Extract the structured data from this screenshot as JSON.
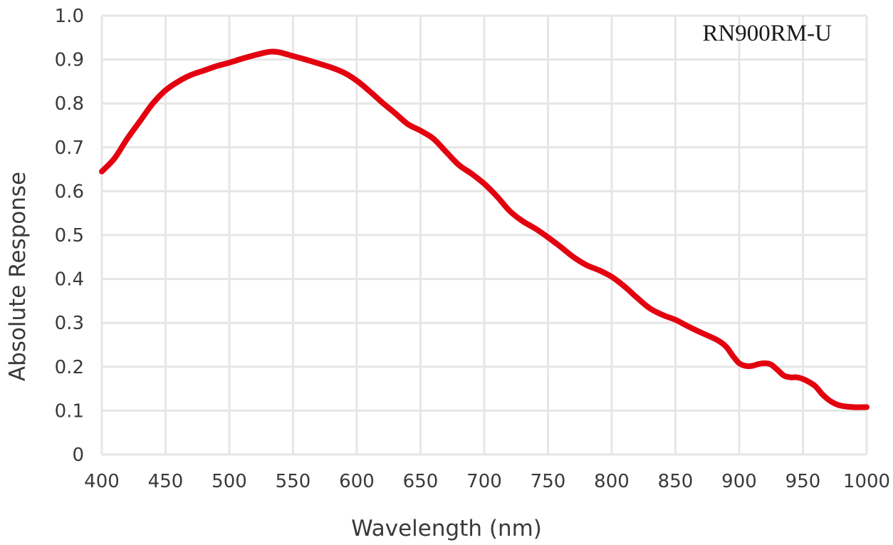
{
  "chart_data": {
    "type": "line",
    "title": "",
    "xlabel": "Wavelength (nm)",
    "ylabel": "Absolute Response",
    "annotation": "RN900RM-U",
    "xlim": [
      400,
      1000
    ],
    "ylim": [
      0,
      1.0
    ],
    "xticks": [
      400,
      450,
      500,
      550,
      600,
      650,
      700,
      750,
      800,
      850,
      900,
      950,
      1000
    ],
    "yticks": [
      0,
      0.1,
      0.2,
      0.3,
      0.4,
      0.5,
      0.6,
      0.7,
      0.8,
      0.9,
      1.0
    ],
    "xtick_labels": [
      "400",
      "450",
      "500",
      "550",
      "600",
      "650",
      "700",
      "750",
      "800",
      "850",
      "900",
      "950",
      "1000"
    ],
    "ytick_labels": [
      "0",
      "0.1",
      "0.2",
      "0.3",
      "0.4",
      "0.5",
      "0.6",
      "0.7",
      "0.8",
      "0.9",
      "1.0"
    ],
    "grid": true,
    "legend": "none",
    "series": [
      {
        "color": "#e3000f",
        "x": [
          400,
          410,
          420,
          430,
          440,
          450,
          460,
          470,
          480,
          490,
          500,
          510,
          520,
          530,
          535,
          540,
          550,
          560,
          570,
          580,
          590,
          600,
          610,
          620,
          630,
          640,
          650,
          660,
          670,
          680,
          690,
          700,
          710,
          720,
          730,
          740,
          750,
          760,
          770,
          780,
          790,
          800,
          810,
          820,
          830,
          840,
          850,
          860,
          870,
          880,
          885,
          890,
          895,
          900,
          905,
          910,
          915,
          920,
          925,
          930,
          935,
          940,
          945,
          950,
          955,
          960,
          965,
          970,
          975,
          980,
          990,
          1000
        ],
        "y": [
          0.645,
          0.675,
          0.72,
          0.76,
          0.8,
          0.83,
          0.85,
          0.865,
          0.875,
          0.885,
          0.893,
          0.902,
          0.91,
          0.917,
          0.918,
          0.916,
          0.908,
          0.9,
          0.891,
          0.882,
          0.87,
          0.852,
          0.828,
          0.802,
          0.778,
          0.753,
          0.738,
          0.72,
          0.69,
          0.66,
          0.64,
          0.617,
          0.588,
          0.555,
          0.532,
          0.515,
          0.495,
          0.473,
          0.45,
          0.432,
          0.42,
          0.405,
          0.383,
          0.357,
          0.333,
          0.318,
          0.307,
          0.292,
          0.278,
          0.265,
          0.257,
          0.245,
          0.225,
          0.208,
          0.202,
          0.202,
          0.206,
          0.208,
          0.205,
          0.193,
          0.18,
          0.176,
          0.176,
          0.172,
          0.165,
          0.155,
          0.138,
          0.125,
          0.116,
          0.111,
          0.108,
          0.108
        ]
      }
    ]
  }
}
